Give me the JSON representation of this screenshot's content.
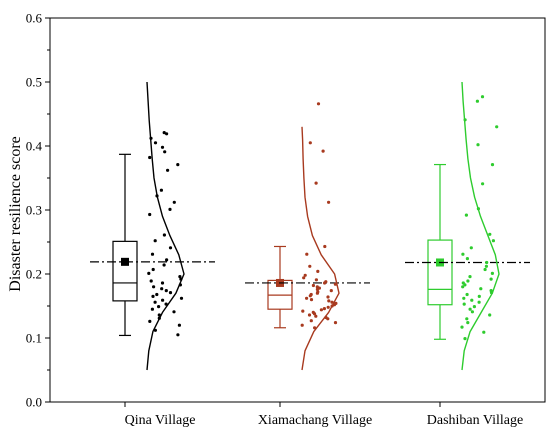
{
  "chart_data": {
    "type": "box-violin-scatter",
    "ylabel": "Disaster resilience score",
    "ylim": [
      0.0,
      0.6
    ],
    "yticks": [
      0.0,
      0.1,
      0.2,
      0.3,
      0.4,
      0.5,
      0.6
    ],
    "ytick_labels": [
      "0.0",
      "0.1",
      "0.2",
      "0.3",
      "0.4",
      "0.5",
      "0.6"
    ],
    "categories": [
      "Qina Village",
      "Xiamachang Village",
      "Dashiban Village"
    ],
    "grid": false,
    "series": [
      {
        "category": "Qina Village",
        "color": "#000000",
        "box": {
          "whisker_low": 0.104,
          "q1": 0.158,
          "median": 0.186,
          "q3": 0.251,
          "whisker_high": 0.387,
          "mean": 0.219
        },
        "mean_line": 0.219,
        "points": [
          0.421,
          0.419,
          0.412,
          0.405,
          0.398,
          0.391,
          0.382,
          0.371,
          0.362,
          0.331,
          0.322,
          0.312,
          0.301,
          0.293,
          0.261,
          0.252,
          0.241,
          0.231,
          0.222,
          0.214,
          0.207,
          0.201,
          0.196,
          0.192,
          0.189,
          0.186,
          0.183,
          0.18,
          0.177,
          0.174,
          0.171,
          0.168,
          0.165,
          0.162,
          0.159,
          0.156,
          0.153,
          0.149,
          0.145,
          0.141,
          0.136,
          0.131,
          0.126,
          0.12,
          0.112,
          0.105
        ],
        "density": [
          [
            0.05,
            0.0
          ],
          [
            0.08,
            0.05
          ],
          [
            0.11,
            0.16
          ],
          [
            0.14,
            0.42
          ],
          [
            0.17,
            0.78
          ],
          [
            0.2,
            1.0
          ],
          [
            0.23,
            0.86
          ],
          [
            0.26,
            0.62
          ],
          [
            0.29,
            0.42
          ],
          [
            0.32,
            0.28
          ],
          [
            0.35,
            0.19
          ],
          [
            0.38,
            0.14
          ],
          [
            0.41,
            0.1
          ],
          [
            0.44,
            0.06
          ],
          [
            0.47,
            0.03
          ],
          [
            0.5,
            0.0
          ]
        ]
      },
      {
        "category": "Xiamachang Village",
        "color": "#a83a1f",
        "box": {
          "whisker_low": 0.116,
          "q1": 0.145,
          "median": 0.167,
          "q3": 0.19,
          "whisker_high": 0.243,
          "mean": 0.186
        },
        "mean_line": 0.186,
        "points": [
          0.466,
          0.405,
          0.392,
          0.342,
          0.312,
          0.243,
          0.231,
          0.212,
          0.204,
          0.198,
          0.194,
          0.191,
          0.188,
          0.186,
          0.184,
          0.182,
          0.18,
          0.178,
          0.176,
          0.174,
          0.172,
          0.17,
          0.168,
          0.166,
          0.164,
          0.162,
          0.16,
          0.158,
          0.156,
          0.154,
          0.152,
          0.15,
          0.148,
          0.146,
          0.144,
          0.142,
          0.14,
          0.138,
          0.136,
          0.134,
          0.132,
          0.13,
          0.127,
          0.124,
          0.12,
          0.116
        ],
        "density": [
          [
            0.05,
            0.0
          ],
          [
            0.08,
            0.08
          ],
          [
            0.11,
            0.32
          ],
          [
            0.14,
            0.72
          ],
          [
            0.17,
            1.0
          ],
          [
            0.2,
            0.88
          ],
          [
            0.23,
            0.52
          ],
          [
            0.26,
            0.28
          ],
          [
            0.29,
            0.15
          ],
          [
            0.32,
            0.08
          ],
          [
            0.35,
            0.05
          ],
          [
            0.38,
            0.03
          ],
          [
            0.41,
            0.015
          ],
          [
            0.43,
            0.0
          ]
        ]
      },
      {
        "category": "Dashiban Village",
        "color": "#2ecc2e",
        "box": {
          "whisker_low": 0.098,
          "q1": 0.152,
          "median": 0.176,
          "q3": 0.253,
          "whisker_high": 0.371,
          "mean": 0.218
        },
        "mean_line": 0.218,
        "points": [
          0.477,
          0.47,
          0.441,
          0.43,
          0.402,
          0.371,
          0.341,
          0.302,
          0.292,
          0.262,
          0.252,
          0.241,
          0.231,
          0.224,
          0.218,
          0.212,
          0.207,
          0.201,
          0.196,
          0.192,
          0.189,
          0.186,
          0.183,
          0.18,
          0.177,
          0.174,
          0.171,
          0.168,
          0.165,
          0.162,
          0.159,
          0.156,
          0.153,
          0.149,
          0.145,
          0.141,
          0.136,
          0.13,
          0.124,
          0.117,
          0.109,
          0.099
        ],
        "density": [
          [
            0.05,
            0.0
          ],
          [
            0.08,
            0.06
          ],
          [
            0.11,
            0.22
          ],
          [
            0.14,
            0.52
          ],
          [
            0.17,
            0.82
          ],
          [
            0.2,
            1.0
          ],
          [
            0.23,
            0.9
          ],
          [
            0.26,
            0.7
          ],
          [
            0.29,
            0.5
          ],
          [
            0.32,
            0.34
          ],
          [
            0.35,
            0.23
          ],
          [
            0.38,
            0.16
          ],
          [
            0.41,
            0.11
          ],
          [
            0.44,
            0.07
          ],
          [
            0.47,
            0.03
          ],
          [
            0.5,
            0.0
          ]
        ]
      }
    ]
  }
}
